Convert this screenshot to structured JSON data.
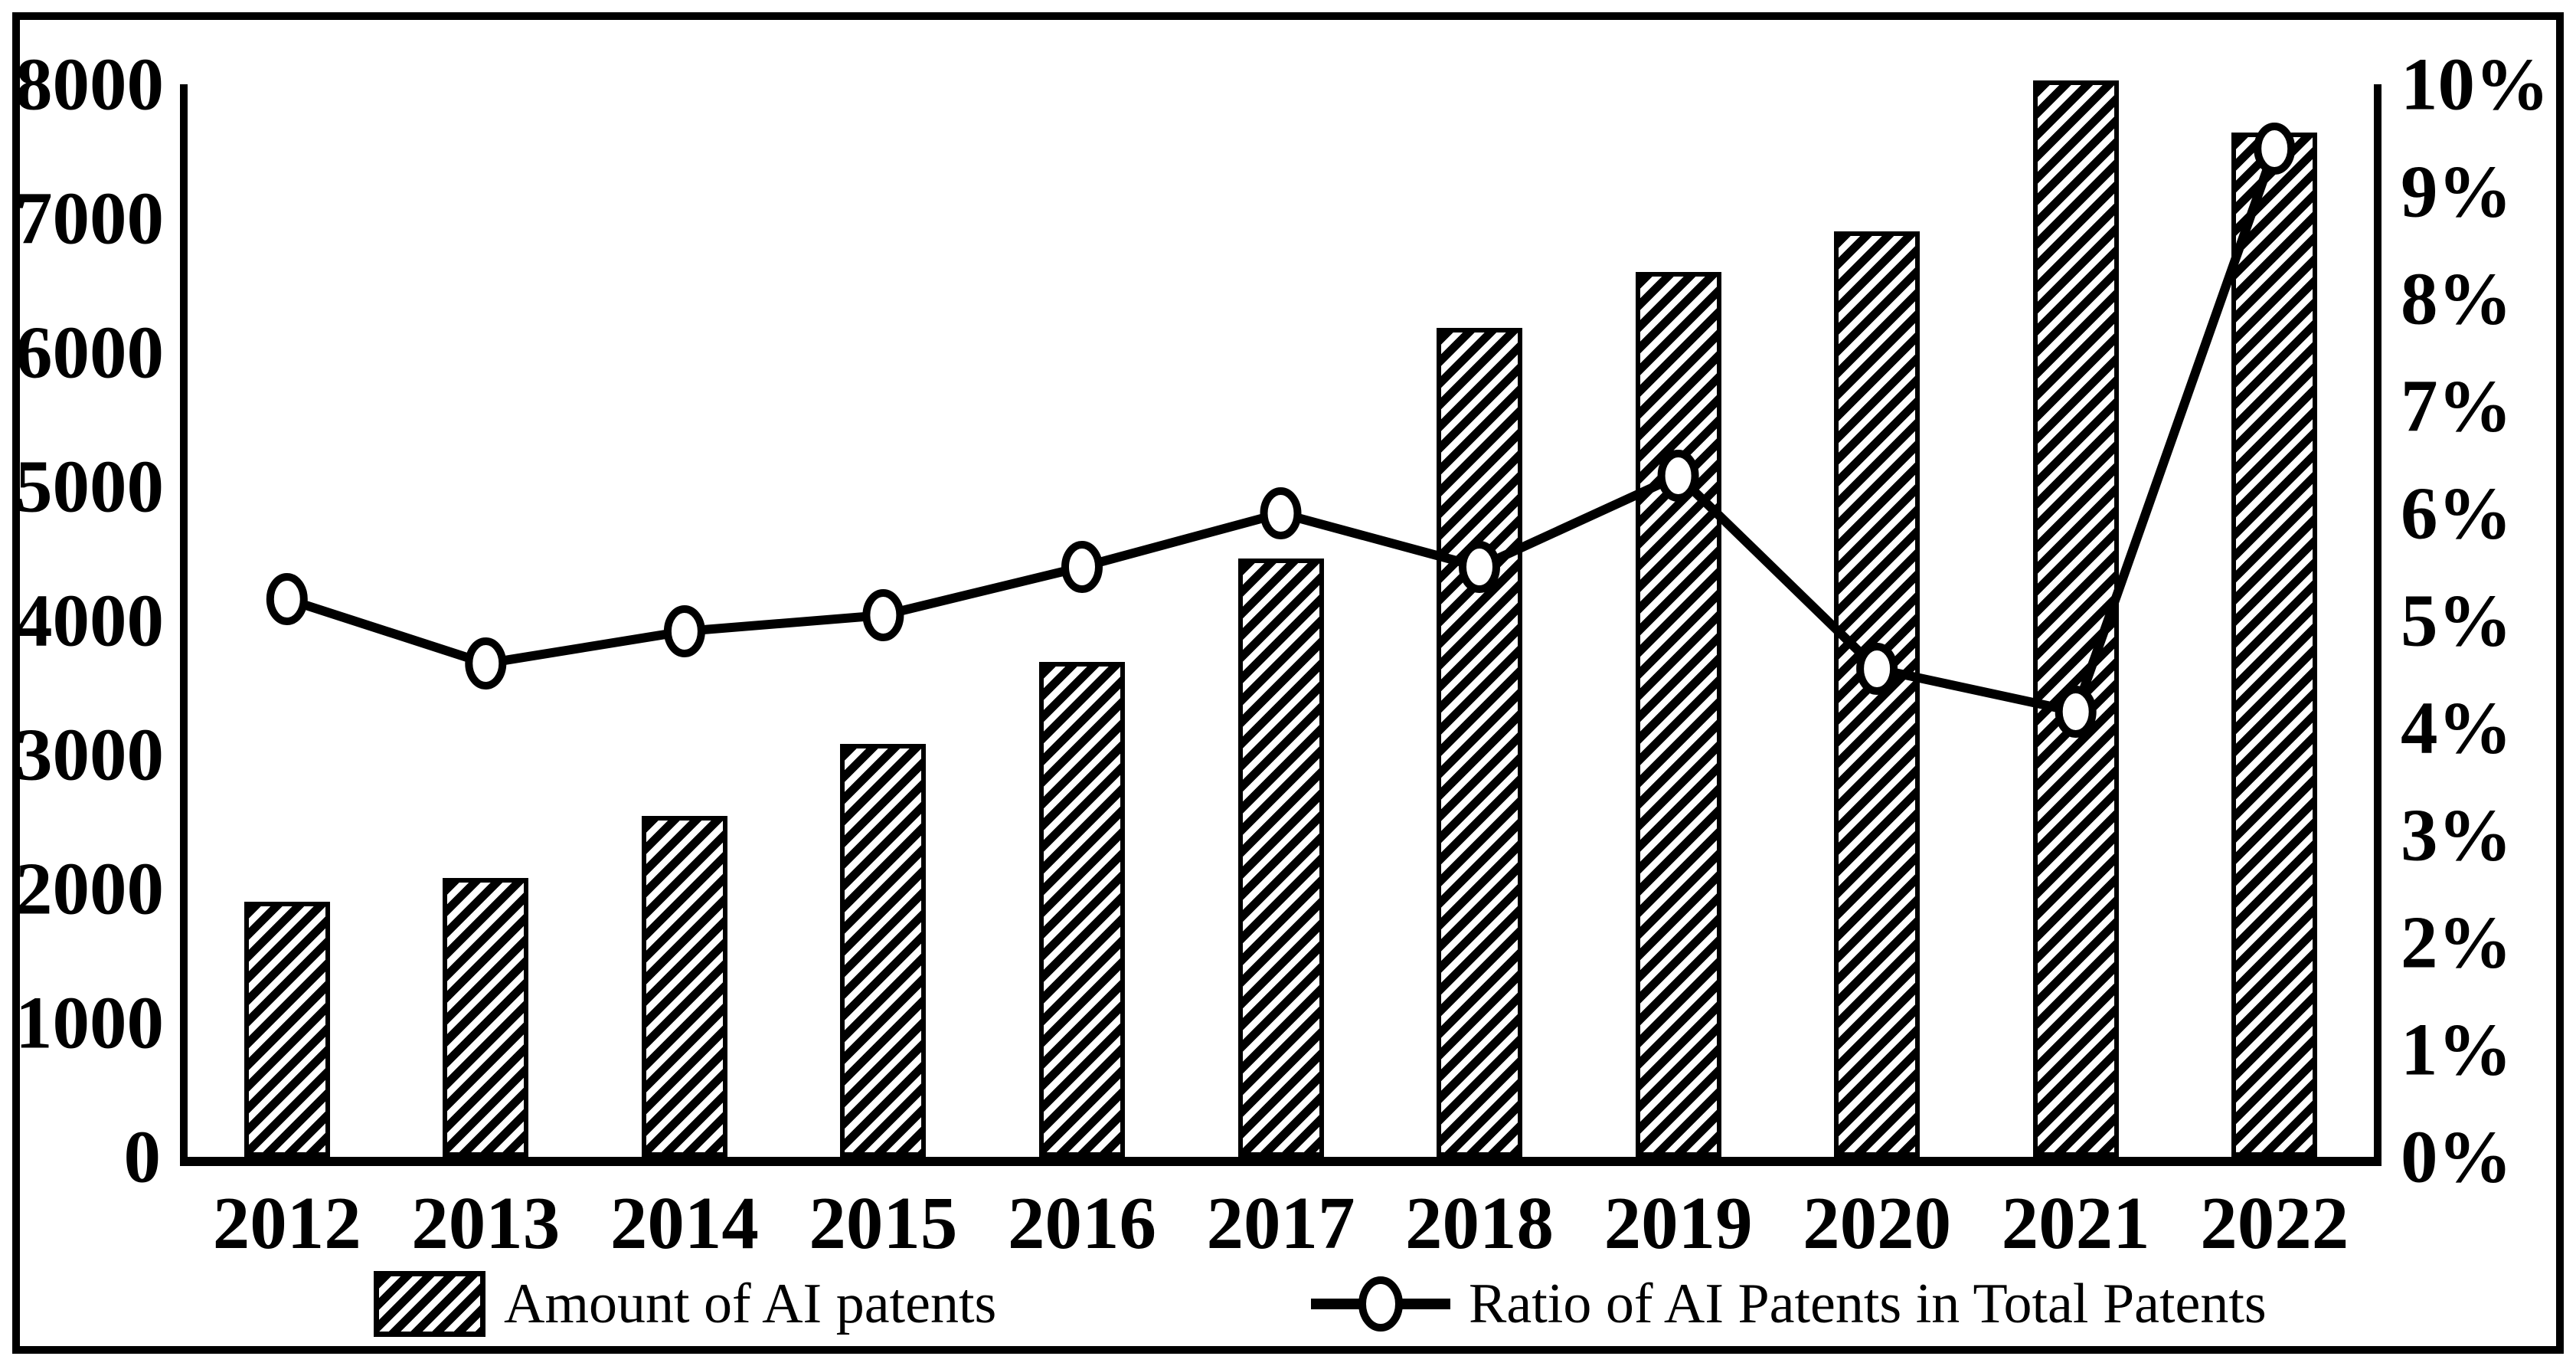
{
  "colors": {
    "foreground": "#000000",
    "background": "#ffffff"
  },
  "legend": {
    "items": [
      {
        "label": "Amount of AI patents",
        "marker": "hatched-swatch"
      },
      {
        "label": "Ratio of AI Patents in Total Patents",
        "marker": "line-open-circle"
      }
    ]
  },
  "chart_data": {
    "type": "bar",
    "subtype": "combo-bar-line-dual-axis",
    "title": "",
    "categories": [
      "2012",
      "2013",
      "2014",
      "2015",
      "2016",
      "2017",
      "2018",
      "2019",
      "2020",
      "2021",
      "2022"
    ],
    "series": [
      {
        "name": "Amount of AI patents",
        "type": "bar",
        "axis": "left",
        "values": [
          1900,
          2080,
          2540,
          3080,
          3690,
          4460,
          6180,
          6600,
          6900,
          8030,
          7640
        ],
        "style": {
          "fill": "diagonal-hatch",
          "stroke": "#000000",
          "fill_background": "#ffffff"
        }
      },
      {
        "name": "Ratio of AI Patents in Total Patents",
        "type": "line",
        "axis": "right",
        "values_percent": [
          5.2,
          4.6,
          4.9,
          5.05,
          5.5,
          6.0,
          5.5,
          6.35,
          4.55,
          4.15,
          9.4
        ],
        "style": {
          "stroke": "#000000",
          "marker": "open-circle",
          "marker_fill": "#ffffff"
        }
      }
    ],
    "left_axis": {
      "min": 0,
      "max": 8000,
      "step": 1000,
      "tick_labels": [
        "8000",
        "7000",
        "6000",
        "5000",
        "4000",
        "3000",
        "2000",
        "1000",
        "0"
      ]
    },
    "right_axis": {
      "min": 0,
      "max": 10,
      "step": 1,
      "tick_labels": [
        "10%",
        "9%",
        "8%",
        "7%",
        "6%",
        "5%",
        "4%",
        "3%",
        "2%",
        "1%",
        "0%"
      ]
    },
    "grid": false,
    "legend_position": "bottom"
  }
}
